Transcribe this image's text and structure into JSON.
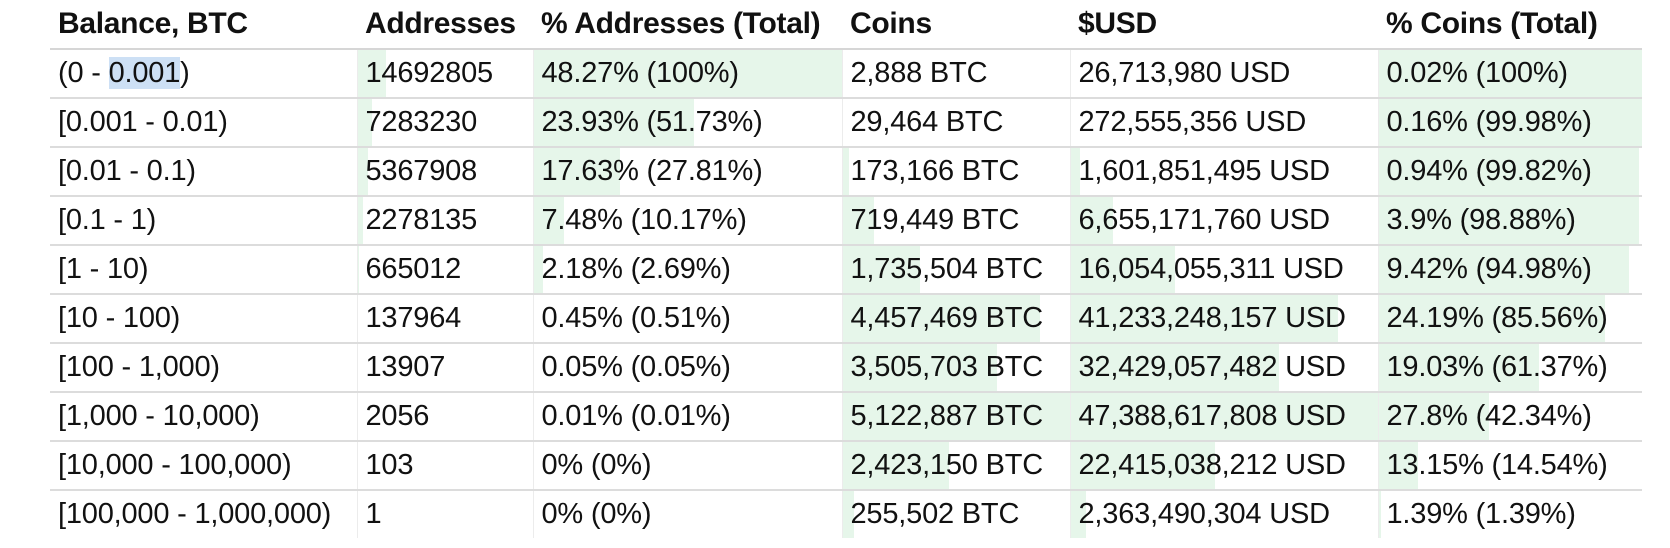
{
  "table": {
    "headers": [
      "Balance, BTC",
      "Addresses",
      "% Addresses (Total)",
      "Coins",
      "$USD",
      "% Coins (Total)"
    ],
    "bar_color": "#e6f6ea",
    "selection_color": "#cde0f5",
    "rows": [
      {
        "range_prefix": "(0 - ",
        "range_selected": "0.001",
        "range_suffix": ")",
        "addresses": "14692805",
        "addr_pct": "48.27% (100%)",
        "coins": "2,888 BTC",
        "usd": "26,713,980 USD",
        "coins_pct": "0.02% (100%)",
        "bars": {
          "addresses": 0.16,
          "addr_pct": 1.0,
          "coins": 0.0,
          "usd": 0.0,
          "coins_pct": 1.0
        }
      },
      {
        "range_prefix": "[0.001 - 0.01)",
        "range_selected": "",
        "range_suffix": "",
        "addresses": "7283230",
        "addr_pct": "23.93% (51.73%)",
        "coins": "29,464 BTC",
        "usd": "272,555,356 USD",
        "coins_pct": "0.16% (99.98%)",
        "bars": {
          "addresses": 0.08,
          "addr_pct": 0.52,
          "coins": 0.0,
          "usd": 0.0,
          "coins_pct": 1.0
        }
      },
      {
        "range_prefix": "[0.01 - 0.1)",
        "range_selected": "",
        "range_suffix": "",
        "addresses": "5367908",
        "addr_pct": "17.63% (27.81%)",
        "coins": "173,166 BTC",
        "usd": "1,601,851,495 USD",
        "coins_pct": "0.94% (99.82%)",
        "bars": {
          "addresses": 0.06,
          "addr_pct": 0.28,
          "coins": 0.03,
          "usd": 0.03,
          "coins_pct": 0.99
        }
      },
      {
        "range_prefix": "[0.1 - 1)",
        "range_selected": "",
        "range_suffix": "",
        "addresses": "2278135",
        "addr_pct": "7.48% (10.17%)",
        "coins": "719,449 BTC",
        "usd": "6,655,171,760 USD",
        "coins_pct": "3.9% (98.88%)",
        "bars": {
          "addresses": 0.03,
          "addr_pct": 0.1,
          "coins": 0.14,
          "usd": 0.14,
          "coins_pct": 0.99
        }
      },
      {
        "range_prefix": "[1 - 10)",
        "range_selected": "",
        "range_suffix": "",
        "addresses": "665012",
        "addr_pct": "2.18% (2.69%)",
        "coins": "1,735,504 BTC",
        "usd": "16,054,055,311 USD",
        "coins_pct": "9.42% (94.98%)",
        "bars": {
          "addresses": 0.01,
          "addr_pct": 0.03,
          "coins": 0.34,
          "usd": 0.34,
          "coins_pct": 0.95
        }
      },
      {
        "range_prefix": "[10 - 100)",
        "range_selected": "",
        "range_suffix": "",
        "addresses": "137964",
        "addr_pct": "0.45% (0.51%)",
        "coins": "4,457,469 BTC",
        "usd": "41,233,248,157 USD",
        "coins_pct": "24.19% (85.56%)",
        "bars": {
          "addresses": 0.0,
          "addr_pct": 0.0,
          "coins": 0.87,
          "usd": 0.87,
          "coins_pct": 0.86
        }
      },
      {
        "range_prefix": "[100 - 1,000)",
        "range_selected": "",
        "range_suffix": "",
        "addresses": "13907",
        "addr_pct": "0.05% (0.05%)",
        "coins": "3,505,703 BTC",
        "usd": "32,429,057,482 USD",
        "coins_pct": "19.03% (61.37%)",
        "bars": {
          "addresses": 0.0,
          "addr_pct": 0.0,
          "coins": 0.68,
          "usd": 0.68,
          "coins_pct": 0.61
        }
      },
      {
        "range_prefix": "[1,000 - 10,000)",
        "range_selected": "",
        "range_suffix": "",
        "addresses": "2056",
        "addr_pct": "0.01% (0.01%)",
        "coins": "5,122,887 BTC",
        "usd": "47,388,617,808 USD",
        "coins_pct": "27.8% (42.34%)",
        "bars": {
          "addresses": 0.0,
          "addr_pct": 0.0,
          "coins": 1.0,
          "usd": 1.0,
          "coins_pct": 0.42
        }
      },
      {
        "range_prefix": "[10,000 - 100,000)",
        "range_selected": "",
        "range_suffix": "",
        "addresses": "103",
        "addr_pct": "0% (0%)",
        "coins": "2,423,150 BTC",
        "usd": "22,415,038,212 USD",
        "coins_pct": "13.15% (14.54%)",
        "bars": {
          "addresses": 0.0,
          "addr_pct": 0.0,
          "coins": 0.47,
          "usd": 0.47,
          "coins_pct": 0.15
        }
      },
      {
        "range_prefix": "[100,000 - 1,000,000)",
        "range_selected": "",
        "range_suffix": "",
        "addresses": "1",
        "addr_pct": "0% (0%)",
        "coins": "255,502 BTC",
        "usd": "2,363,490,304 USD",
        "coins_pct": "1.39% (1.39%)",
        "bars": {
          "addresses": 0.0,
          "addr_pct": 0.0,
          "coins": 0.05,
          "usd": 0.05,
          "coins_pct": 0.01
        }
      }
    ]
  }
}
